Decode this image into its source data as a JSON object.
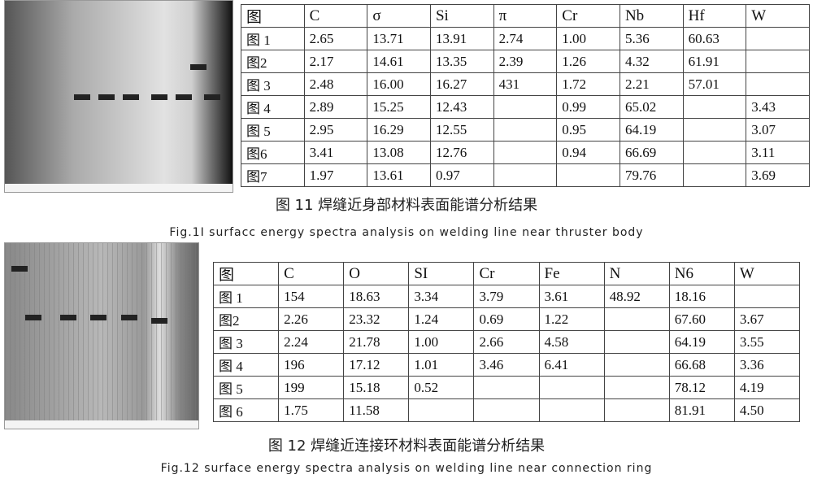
{
  "table1": {
    "header": [
      "图",
      "C",
      "σ",
      "Si",
      "π",
      "Cr",
      "Nb",
      "Hf",
      "W"
    ],
    "rows": [
      [
        "图 1",
        "2.65",
        "13.71",
        "13.91",
        "2.74",
        "1.00",
        "5.36",
        "60.63",
        null
      ],
      [
        "图2",
        "2.17",
        "14.61",
        "13.35",
        "2.39",
        "1.26",
        "4.32",
        "61.91",
        null
      ],
      [
        "图 3",
        "2.48",
        "16.00",
        "16.27",
        "431",
        "1.72",
        "2.21",
        "57.01",
        null
      ],
      [
        "图 4",
        "2.89",
        "15.25",
        "12.43",
        null,
        "0.99",
        "65.02",
        null,
        "3.43"
      ],
      [
        "图 5",
        "2.95",
        "16.29",
        "12.55",
        null,
        "0.95",
        "64.19",
        null,
        "3.07"
      ],
      [
        "图6",
        "3.41",
        "13.08",
        "12.76",
        null,
        "0.94",
        "66.69",
        null,
        "3.11"
      ],
      [
        "图7",
        "1.97",
        "13.61",
        "0.97",
        null,
        null,
        "79.76",
        null,
        "3.69"
      ]
    ],
    "caption_cn": "图 11 焊缝近身部材料表面能谱分析结果",
    "caption_en": "Fig.1I surfacc energy spectra analysis on welding line near thruster body"
  },
  "table2": {
    "header": [
      "图",
      "C",
      "O",
      "SI",
      "Cr",
      "Fe",
      "N",
      "N6",
      "W"
    ],
    "rows": [
      [
        "图 1",
        "154",
        "18.63",
        "3.34",
        "3.79",
        "3.61",
        "48.92",
        "18.16",
        null
      ],
      [
        "图2",
        "2.26",
        "23.32",
        "1.24",
        "0.69",
        "1.22",
        null,
        "67.60",
        "3.67"
      ],
      [
        "图 3",
        "2.24",
        "21.78",
        "1.00",
        "2.66",
        "4.58",
        null,
        "64.19",
        "3.55"
      ],
      [
        "图 4",
        "196",
        "17.12",
        "1.01",
        "3.46",
        "6.41",
        null,
        "66.68",
        "3.36"
      ],
      [
        "图 5",
        "199",
        "15.18",
        "0.52",
        null,
        null,
        null,
        "78.12",
        "4.19"
      ],
      [
        "图 6",
        "1.75",
        "11.58",
        null,
        null,
        null,
        null,
        "81.91",
        "4.50"
      ]
    ],
    "caption_cn": "图 12 焊缝近连接环材料表面能谱分析结果",
    "caption_en": "Fig.12 surface energy spectra analysis on welding line near connection ring"
  }
}
